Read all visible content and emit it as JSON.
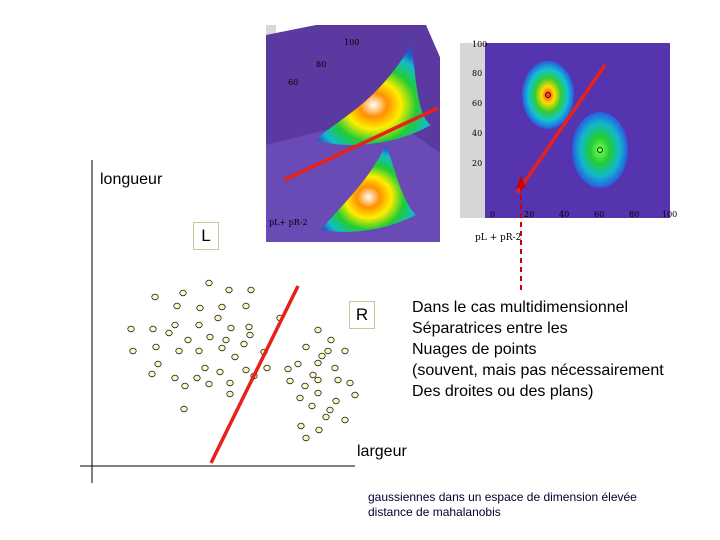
{
  "axes": {
    "y_label": "longueur",
    "x_label": "largeur"
  },
  "classes": {
    "left": "L",
    "right": "R"
  },
  "description": {
    "lines": [
      "Dans le cas multidimensionnel",
      "Séparatrices entre les",
      "Nuages de points",
      "(souvent, mais pas nécessairement",
      "Des droites ou des plans)"
    ]
  },
  "footnote": {
    "lines": [
      "gaussiennes dans un espace de dimension élevée",
      "distance de mahalanobis"
    ]
  },
  "surface_plot": {
    "tick_labels": [
      "100",
      "80",
      "60"
    ],
    "bottom_label": "pL+ pR-2",
    "colors": {
      "background": "#5a3aa0",
      "floor": "#6a4ab4",
      "separator": "#e8201a"
    }
  },
  "contour_plot": {
    "y_ticks": [
      "100",
      "80",
      "60",
      "40",
      "20"
    ],
    "x_ticks": [
      "0",
      "20",
      "40",
      "60",
      "80",
      "100"
    ],
    "axis_label": "pL + pR-2",
    "colors": {
      "background": "#5634b0",
      "separator": "#e8201a"
    }
  },
  "scatter": {
    "colors": {
      "point_fill": "#fffbc0",
      "point_stroke": "#222222",
      "separator": "#e8201a",
      "arrow": "#cc0000"
    }
  }
}
